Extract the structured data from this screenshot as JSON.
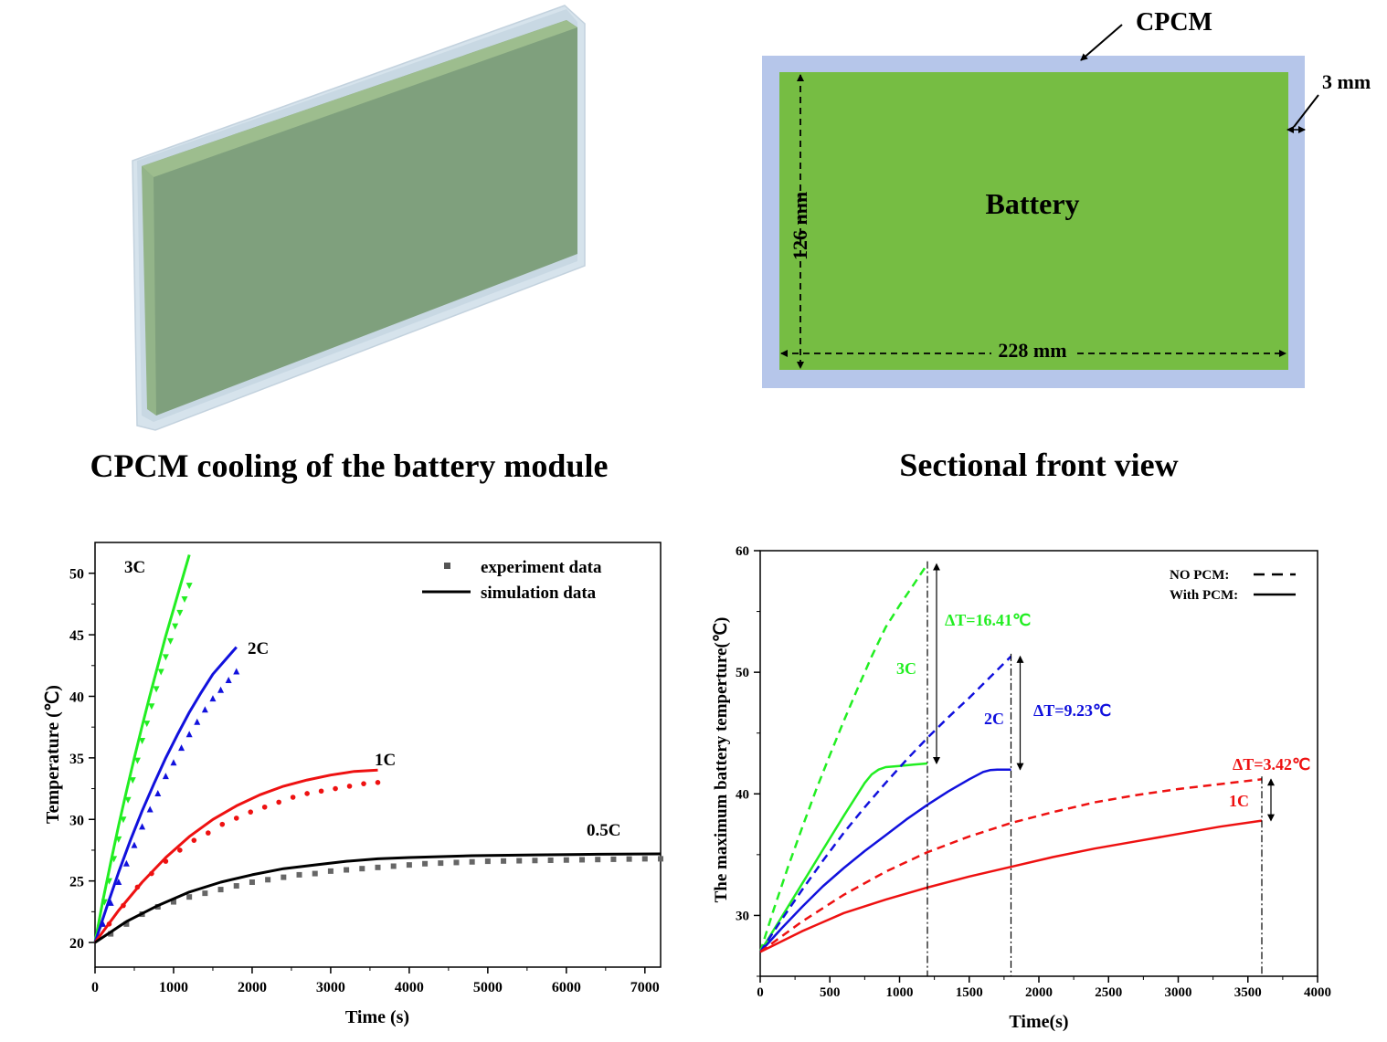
{
  "panels": {
    "module3d": {
      "caption": "CPCM cooling of the battery module"
    },
    "section": {
      "caption": "Sectional front view",
      "cpcm_label": "CPCM",
      "thickness_label": "3 mm",
      "battery_label": "Battery",
      "height_label": "126 mm",
      "width_label": "228 mm"
    }
  },
  "colors": {
    "battery_green": "#76bd43",
    "cpcm_blue": "#b4c4e8",
    "module_green": "#7e9e7c",
    "module_shell": "#d4e1ea",
    "c3": "#22ee22",
    "c2": "#1111dd",
    "c1": "#ee1111",
    "c05": "#000000",
    "exp_gray": "#555555"
  },
  "chart_data": [
    {
      "type": "line",
      "xlabel": "Time (s)",
      "ylabel": "Temperature (℃)",
      "xlim": [
        0,
        7200
      ],
      "ylim": [
        18,
        52.5
      ],
      "xticks": [
        0,
        1000,
        2000,
        3000,
        4000,
        5000,
        6000,
        7000
      ],
      "yticks": [
        20,
        25,
        30,
        35,
        40,
        45,
        50
      ],
      "legend": {
        "position": "top-right",
        "entries": [
          "experiment data",
          "simulation data"
        ]
      },
      "series": [
        {
          "name": "3C",
          "color": "#22ee22",
          "marker": "triangle-down",
          "sim_x": [
            0,
            100,
            200,
            300,
            400,
            500,
            600,
            700,
            800,
            900,
            1000,
            1100,
            1200
          ],
          "sim_y": [
            20,
            23.4,
            26.5,
            29.5,
            32.3,
            35.0,
            37.6,
            40.1,
            42.5,
            44.9,
            47.1,
            49.3,
            51.5
          ],
          "exp_x": [
            60,
            120,
            180,
            240,
            300,
            360,
            420,
            480,
            540,
            600,
            660,
            720,
            780,
            840,
            900,
            960,
            1020,
            1080,
            1140,
            1200
          ],
          "exp_y": [
            21.2,
            23.3,
            25.0,
            26.8,
            28.4,
            30.0,
            31.6,
            33.2,
            34.8,
            36.4,
            37.8,
            39.2,
            40.6,
            42.0,
            43.2,
            44.5,
            45.7,
            46.8,
            47.9,
            49.0
          ]
        },
        {
          "name": "2C",
          "color": "#1111dd",
          "marker": "triangle-up",
          "sim_x": [
            0,
            150,
            300,
            450,
            600,
            750,
            900,
            1050,
            1200,
            1350,
            1500,
            1650,
            1800
          ],
          "sim_y": [
            20,
            22.9,
            25.7,
            28.3,
            30.7,
            32.9,
            35.0,
            36.9,
            38.7,
            40.3,
            41.8,
            42.9,
            44.0
          ],
          "exp_x": [
            100,
            200,
            300,
            400,
            500,
            600,
            700,
            800,
            900,
            1000,
            1100,
            1200,
            1300,
            1400,
            1500,
            1600,
            1700,
            1800
          ],
          "exp_y": [
            21.5,
            23.2,
            24.9,
            26.4,
            27.9,
            29.4,
            30.8,
            32.1,
            33.5,
            34.6,
            35.8,
            36.9,
            37.9,
            38.9,
            39.8,
            40.5,
            41.3,
            42.0
          ]
        },
        {
          "name": "1C",
          "color": "#ee1111",
          "marker": "circle",
          "sim_x": [
            0,
            300,
            600,
            900,
            1200,
            1500,
            1800,
            2100,
            2400,
            2700,
            3000,
            3300,
            3600
          ],
          "sim_y": [
            20,
            22.6,
            24.9,
            26.9,
            28.6,
            30.0,
            31.1,
            32.0,
            32.7,
            33.2,
            33.6,
            33.9,
            34.0
          ],
          "exp_x": [
            180,
            360,
            540,
            720,
            900,
            1080,
            1260,
            1440,
            1620,
            1800,
            1980,
            2160,
            2340,
            2520,
            2700,
            2880,
            3060,
            3240,
            3420,
            3600
          ],
          "exp_y": [
            21.5,
            23.0,
            24.5,
            25.6,
            26.6,
            27.5,
            28.3,
            28.9,
            29.6,
            30.1,
            30.6,
            31.0,
            31.4,
            31.8,
            32.1,
            32.3,
            32.5,
            32.7,
            32.9,
            33.0
          ]
        },
        {
          "name": "0.5C",
          "color": "#000000",
          "marker": "square",
          "sim_x": [
            0,
            400,
            800,
            1200,
            1600,
            2000,
            2400,
            2800,
            3200,
            3600,
            4000,
            4800,
            5600,
            6400,
            7200
          ],
          "sim_y": [
            20,
            21.7,
            23.0,
            24.1,
            24.9,
            25.5,
            26.0,
            26.3,
            26.6,
            26.8,
            26.9,
            27.05,
            27.12,
            27.17,
            27.2
          ],
          "exp_x": [
            200,
            400,
            600,
            800,
            1000,
            1200,
            1400,
            1600,
            1800,
            2000,
            2200,
            2400,
            2600,
            2800,
            3000,
            3200,
            3400,
            3600,
            3800,
            4000,
            4200,
            4400,
            4600,
            4800,
            5000,
            5200,
            5400,
            5600,
            5800,
            6000,
            6200,
            6400,
            6600,
            6800,
            7000,
            7200
          ],
          "exp_y": [
            20.7,
            21.5,
            22.3,
            22.9,
            23.3,
            23.7,
            24.0,
            24.3,
            24.6,
            24.9,
            25.1,
            25.3,
            25.5,
            25.6,
            25.8,
            25.9,
            26.0,
            26.1,
            26.2,
            26.3,
            26.4,
            26.45,
            26.5,
            26.55,
            26.6,
            26.62,
            26.64,
            26.66,
            26.68,
            26.7,
            26.72,
            26.74,
            26.76,
            26.78,
            26.8,
            26.8
          ]
        }
      ]
    },
    {
      "type": "line",
      "xlabel": "Time(s)",
      "ylabel": "The maximum battery temperture(℃)",
      "xlim": [
        0,
        4000
      ],
      "ylim": [
        25,
        60
      ],
      "xticks": [
        0,
        500,
        1000,
        1500,
        2000,
        2500,
        3000,
        3500,
        4000
      ],
      "yticks": [
        30,
        40,
        50,
        60
      ],
      "legend": {
        "position": "top-right",
        "entries": [
          "NO PCM:",
          "With PCM:"
        ]
      },
      "annotations": [
        {
          "text": "ΔT=16.41℃",
          "color": "#22ee22",
          "at_time": 1200,
          "from": 42.5,
          "to": 58.9
        },
        {
          "text": "ΔT=9.23℃",
          "color": "#1111dd",
          "at_time": 1800,
          "from": 42.0,
          "to": 51.3
        },
        {
          "text": "ΔT=3.42℃",
          "color": "#ee1111",
          "at_time": 3600,
          "from": 37.8,
          "to": 41.2
        }
      ],
      "series": [
        {
          "name": "3C",
          "color": "#22ee22",
          "nopcm_x": [
            0,
            100,
            200,
            300,
            400,
            500,
            600,
            700,
            800,
            900,
            1000,
            1100,
            1200
          ],
          "nopcm_y": [
            27,
            30.6,
            34.0,
            37.2,
            40.3,
            43.2,
            46.0,
            48.7,
            51.3,
            53.7,
            55.5,
            57.2,
            58.9
          ],
          "pcm_x": [
            0,
            150,
            300,
            450,
            600,
            750,
            800,
            850,
            900,
            1000,
            1100,
            1200
          ],
          "pcm_y": [
            27,
            29.8,
            32.6,
            35.4,
            38.2,
            40.9,
            41.6,
            42.0,
            42.2,
            42.3,
            42.4,
            42.5
          ]
        },
        {
          "name": "2C",
          "color": "#1111dd",
          "nopcm_x": [
            0,
            150,
            300,
            450,
            600,
            750,
            900,
            1050,
            1200,
            1350,
            1500,
            1650,
            1800
          ],
          "nopcm_y": [
            27,
            29.6,
            32.1,
            34.5,
            36.8,
            38.9,
            40.9,
            42.8,
            44.6,
            46.3,
            47.9,
            49.6,
            51.3
          ],
          "pcm_x": [
            0,
            150,
            300,
            450,
            600,
            750,
            900,
            1050,
            1200,
            1350,
            1500,
            1550,
            1600,
            1650,
            1700,
            1800
          ],
          "pcm_y": [
            27,
            28.9,
            30.7,
            32.4,
            33.9,
            35.3,
            36.6,
            37.9,
            39.1,
            40.2,
            41.2,
            41.5,
            41.8,
            41.95,
            42.0,
            42.0
          ]
        },
        {
          "name": "1C",
          "color": "#ee1111",
          "nopcm_x": [
            0,
            300,
            600,
            900,
            1200,
            1500,
            1800,
            2100,
            2400,
            2700,
            3000,
            3300,
            3600
          ],
          "nopcm_y": [
            27,
            29.5,
            31.7,
            33.6,
            35.2,
            36.5,
            37.6,
            38.5,
            39.3,
            39.9,
            40.4,
            40.8,
            41.2
          ],
          "pcm_x": [
            0,
            300,
            600,
            900,
            1200,
            1500,
            1800,
            2100,
            2400,
            2700,
            3000,
            3300,
            3600
          ],
          "pcm_y": [
            27,
            28.7,
            30.2,
            31.3,
            32.3,
            33.2,
            34.0,
            34.8,
            35.5,
            36.1,
            36.7,
            37.3,
            37.8
          ]
        }
      ]
    }
  ]
}
